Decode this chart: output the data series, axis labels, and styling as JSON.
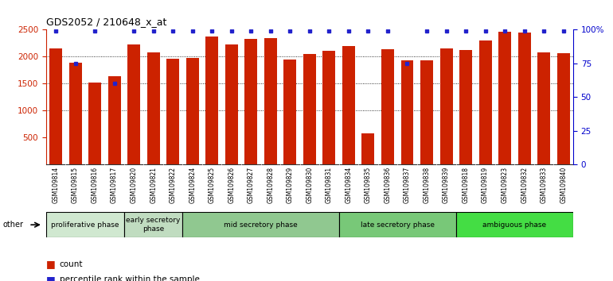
{
  "title": "GDS2052 / 210648_x_at",
  "samples": [
    "GSM109814",
    "GSM109815",
    "GSM109816",
    "GSM109817",
    "GSM109820",
    "GSM109821",
    "GSM109822",
    "GSM109824",
    "GSM109825",
    "GSM109826",
    "GSM109827",
    "GSM109828",
    "GSM109829",
    "GSM109830",
    "GSM109831",
    "GSM109834",
    "GSM109835",
    "GSM109836",
    "GSM109837",
    "GSM109838",
    "GSM109839",
    "GSM109818",
    "GSM109819",
    "GSM109823",
    "GSM109832",
    "GSM109833",
    "GSM109840"
  ],
  "counts": [
    2150,
    1880,
    1510,
    1640,
    2220,
    2080,
    1960,
    1970,
    2370,
    2230,
    2320,
    2340,
    1950,
    2050,
    2110,
    2200,
    580,
    2140,
    1930,
    1930,
    2150,
    2120,
    2290,
    2460,
    2440,
    2070,
    2060
  ],
  "percentiles": [
    99,
    75,
    99,
    60,
    99,
    99,
    99,
    99,
    99,
    99,
    99,
    99,
    99,
    99,
    99,
    99,
    99,
    99,
    75,
    99,
    99,
    99,
    99,
    99,
    99,
    99,
    99
  ],
  "phases": [
    {
      "name": "proliferative phase",
      "color": "#c8e6c9",
      "start": 0,
      "end": 4
    },
    {
      "name": "early secretory\nphase",
      "color": "#b2dfdb",
      "start": 4,
      "end": 7
    },
    {
      "name": "mid secretory phase",
      "color": "#80cbc4",
      "start": 7,
      "end": 15
    },
    {
      "name": "late secretory phase",
      "color": "#66bb6a",
      "start": 15,
      "end": 21
    },
    {
      "name": "ambiguous phase",
      "color": "#00e676",
      "start": 21,
      "end": 27
    }
  ],
  "bar_color": "#cc2200",
  "dot_color": "#2222cc",
  "ylim_left": [
    0,
    2500
  ],
  "ylim_right": [
    0,
    100
  ],
  "yticks_left": [
    500,
    1000,
    1500,
    2000,
    2500
  ],
  "yticks_right": [
    0,
    25,
    50,
    75,
    100
  ],
  "bg_color": "#e8e8e8",
  "chart_bg": "#ffffff",
  "title_fontsize": 9,
  "axis_label_color_left": "#cc2200",
  "axis_label_color_right": "#0000cc",
  "grid_dotted_vals": [
    1000,
    1500,
    2000
  ],
  "phase_colors_actual": [
    "#c8e6c9",
    "#c8dfc8",
    "#9fd49f",
    "#6abf69",
    "#4caf50"
  ]
}
